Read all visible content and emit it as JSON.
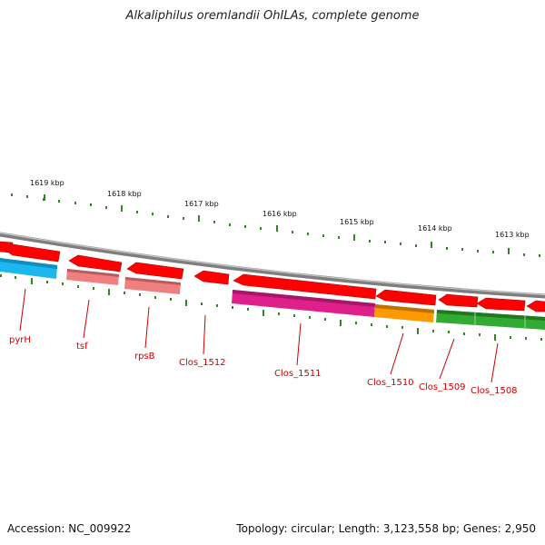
{
  "title": "Alkaliphilus oremlandii OhILAs, complete genome",
  "footer": {
    "accession": "Accession: NC_009922",
    "stats": "Topology: circular; Length: 3,123,558 bp; Genes: 2,950"
  },
  "scale": {
    "major_ticks": [
      {
        "label": "1619 kbp"
      },
      {
        "label": "1618 kbp"
      },
      {
        "label": "1617 kbp"
      },
      {
        "label": "1616 kbp"
      },
      {
        "label": "1615 kbp"
      },
      {
        "label": "1614 kbp"
      },
      {
        "label": "1613 kbp"
      }
    ]
  },
  "genes": [
    {
      "label": "pyrH"
    },
    {
      "label": "tsf"
    },
    {
      "label": "rpsB"
    },
    {
      "label": "Clos_1512"
    },
    {
      "label": "Clos_1511"
    },
    {
      "label": "Clos_1510"
    },
    {
      "label": "Clos_1509"
    },
    {
      "label": "Clos_1508"
    }
  ],
  "colors": {
    "cds": "#ff0000",
    "backbone": "#8c8c8c",
    "tick": "#2e8b22",
    "label": "#cc0000",
    "pyrH": "#1ab8ee",
    "tsf": "#f08080",
    "rpsB": "#f08080",
    "Clos_1511": "#e0208a",
    "Clos_1510": "#ff9900",
    "Clos_1509": "#33aa33"
  }
}
